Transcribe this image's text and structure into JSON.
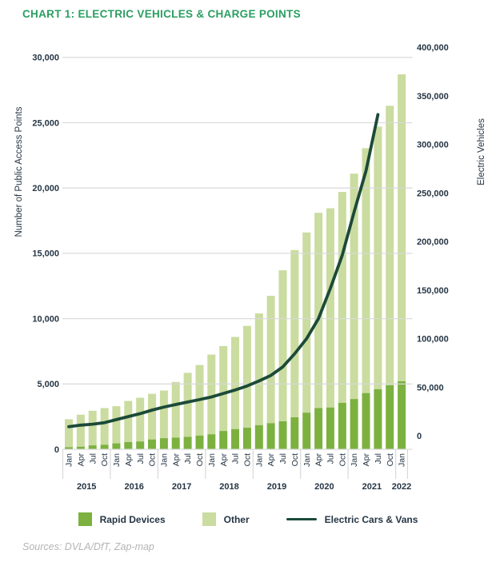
{
  "header": {
    "title": "CHART 1: ELECTRIC VEHICLES & CHARGE POINTS"
  },
  "footer": {
    "sources": "Sources: DVLA/DfT, Zap-map"
  },
  "colors": {
    "title_green": "#2b9e62",
    "rapid_green": "#7cb13f",
    "other_green": "#cadc9f",
    "line_teal": "#1c4a38",
    "gridline": "#d9d9d9",
    "axis_text": "#253544",
    "sources_gray": "#b5b5b5"
  },
  "legend": [
    {
      "label": "Rapid Devices",
      "swatch": "square",
      "color": "#7cb13f"
    },
    {
      "label": "Other",
      "swatch": "square",
      "color": "#cadc9f"
    },
    {
      "label": "Electric Cars & Vans",
      "swatch": "line",
      "color": "#1c4a38"
    }
  ],
  "chart_data": {
    "type": "bar",
    "subtype": "stacked-bars-with-secondary-axis-line",
    "grid": "horizontal",
    "legend_position": "bottom",
    "categories": [
      "Jan 2015",
      "Apr 2015",
      "Jul 2015",
      "Oct 2015",
      "Jan 2016",
      "Apr 2016",
      "Jul 2016",
      "Oct 2016",
      "Jan 2017",
      "Apr 2017",
      "Jul 2017",
      "Oct 2017",
      "Jan 2018",
      "Apr 2018",
      "Jul 2018",
      "Oct 2018",
      "Jan 2019",
      "Apr 2019",
      "Jul 2019",
      "Oct 2019",
      "Jan 2020",
      "Apr 2020",
      "Jul 2020",
      "Oct 2020",
      "Jan 2021",
      "Apr 2021",
      "Jul 2021",
      "Oct 2021",
      "Jan 2022"
    ],
    "year_groups": [
      {
        "year": "2015",
        "count": 4
      },
      {
        "year": "2016",
        "count": 4
      },
      {
        "year": "2017",
        "count": 4
      },
      {
        "year": "2018",
        "count": 4
      },
      {
        "year": "2019",
        "count": 4
      },
      {
        "year": "2020",
        "count": 4
      },
      {
        "year": "2021",
        "count": 4
      },
      {
        "year": "2022",
        "count": 1
      }
    ],
    "series": [
      {
        "name": "Rapid Devices",
        "kind": "bar",
        "stack": "charge-points",
        "axis": "left",
        "color": "#7cb13f",
        "values": [
          150,
          200,
          300,
          350,
          450,
          550,
          600,
          750,
          850,
          900,
          950,
          1050,
          1150,
          1400,
          1550,
          1650,
          1850,
          2000,
          2150,
          2450,
          2800,
          3150,
          3200,
          3550,
          3850,
          4300,
          4600,
          4900,
          5200
        ]
      },
      {
        "name": "Other",
        "kind": "bar",
        "stack": "charge-points",
        "axis": "left",
        "color": "#cadc9f",
        "values": [
          2150,
          2450,
          2650,
          2800,
          2850,
          3150,
          3350,
          3500,
          3650,
          4250,
          4900,
          5400,
          6100,
          6500,
          7050,
          7800,
          8550,
          9750,
          11550,
          12800,
          13800,
          14950,
          15250,
          16150,
          17250,
          18750,
          20100,
          21400,
          23500
        ]
      },
      {
        "name": "Electric Cars & Vans",
        "kind": "line",
        "axis": "right",
        "color": "#1c4a38",
        "values": [
          22500,
          24000,
          25000,
          26500,
          29500,
          32500,
          35500,
          39000,
          42000,
          44500,
          47000,
          49500,
          52000,
          55500,
          59000,
          63000,
          68000,
          73500,
          82000,
          95000,
          110000,
          130000,
          160000,
          193000,
          236000,
          277000,
          333000,
          null,
          null
        ]
      }
    ],
    "left_axis": {
      "title": "Number of Public Access Points",
      "min": 0,
      "max": 30000,
      "step": 5000,
      "tick_labels": [
        "0",
        "5,000",
        "10,000",
        "15,000",
        "20,000",
        "25,000",
        "30,000"
      ]
    },
    "right_axis": {
      "title": "Electric Vehicles",
      "min": 0,
      "max": 400000,
      "step": 50000,
      "tick_labels": [
        "0",
        "50,000",
        "100,000",
        "150,000",
        "200,000",
        "250,000",
        "300,000",
        "350,000",
        "400,000"
      ]
    }
  }
}
